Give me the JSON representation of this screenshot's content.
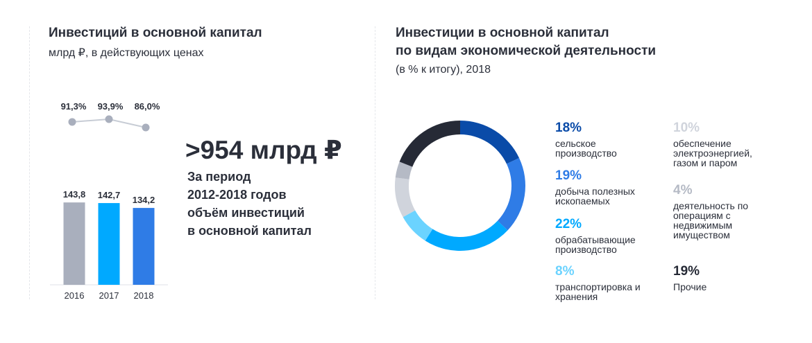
{
  "left": {
    "title": "Инвестиций в основной капитал",
    "subtitle": "млрд ₽, в действующих ценах"
  },
  "right": {
    "title_line1": "Инвестиции в основной капитал",
    "title_line2": "по видам экономической деятельности",
    "subtitle": "(в % к итогу), 2018"
  },
  "highlight": {
    "value": ">954 млрд ₽",
    "lines": [
      "За период",
      "2012-2018 годов",
      "объём инвестиций",
      "в основной капитал"
    ]
  },
  "colors": {
    "gray": "#a9afbd",
    "cyan": "#00a9ff",
    "blue": "#2f7ce6",
    "dark_blue": "#0a4ba8",
    "light_cyan": "#6bd3ff",
    "light_gray": "#d0d4dc",
    "mid_gray": "#b5bac5",
    "dark": "#262a36",
    "line": "#c7ccd5"
  },
  "chart_data": [
    {
      "type": "bar",
      "title": "Инвестиций в основной капитал",
      "subtitle": "млрд ₽, в действующих ценах",
      "categories": [
        "2016",
        "2017",
        "2018"
      ],
      "values": [
        143.8,
        142.7,
        134.2
      ],
      "value_labels": [
        "143,8",
        "142,7",
        "134,2"
      ],
      "bar_colors": [
        "#a9afbd",
        "#00a9ff",
        "#2f7ce6"
      ],
      "ylim": [
        0,
        340
      ],
      "overlay_line": {
        "values": [
          91.3,
          93.9,
          86.0
        ],
        "labels": [
          "91,3%",
          "93,9%",
          "86,0%"
        ]
      }
    },
    {
      "type": "pie",
      "title": "Инвестиции в основной капитал по видам экономической деятельности",
      "subtitle": "(в % к итогу), 2018",
      "slices": [
        {
          "pct_label": "18%",
          "value": 18,
          "label": "сельское производство",
          "color": "#0a4ba8"
        },
        {
          "pct_label": "19%",
          "value": 19,
          "label": "добыча полезных ископаемых",
          "color": "#2f7ce6"
        },
        {
          "pct_label": "22%",
          "value": 22,
          "label": "обрабатывающие производство",
          "color": "#00a9ff"
        },
        {
          "pct_label": "8%",
          "value": 8,
          "label": "транспортировка и хранения",
          "color": "#6bd3ff"
        },
        {
          "pct_label": "10%",
          "value": 10,
          "label": "обеспечение электроэнергией, газом и паром",
          "color": "#d0d4dc"
        },
        {
          "pct_label": "4%",
          "value": 4,
          "label": "деятельность по операциям с недвижимым имуществом",
          "color": "#b5bac5"
        },
        {
          "pct_label": "19%",
          "value": 19,
          "label": "Прочие",
          "color": "#262a36"
        }
      ]
    }
  ]
}
